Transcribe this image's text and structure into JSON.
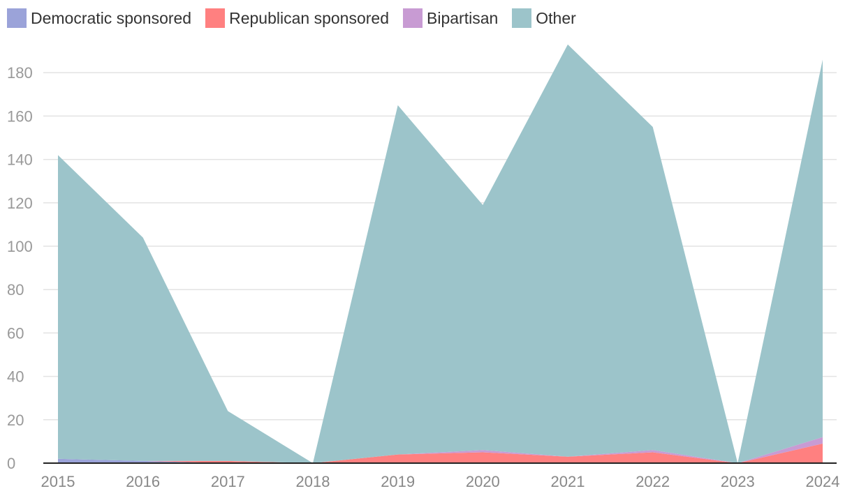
{
  "chart_data": {
    "type": "area",
    "stacked": true,
    "x": [
      "2015",
      "2016",
      "2017",
      "2018",
      "2019",
      "2020",
      "2021",
      "2022",
      "2023",
      "2024"
    ],
    "series": [
      {
        "name": "Democratic sponsored",
        "color": "#9ba3d9",
        "values": [
          2,
          1,
          0,
          0,
          0,
          0,
          0,
          0,
          0,
          0
        ]
      },
      {
        "name": "Republican sponsored",
        "color": "#ff8080",
        "values": [
          0,
          0,
          1,
          0,
          4,
          5,
          3,
          5,
          0,
          9
        ]
      },
      {
        "name": "Bipartisan",
        "color": "#c89bd3",
        "values": [
          0,
          0,
          0,
          0,
          0,
          1,
          0,
          1,
          0,
          3
        ]
      },
      {
        "name": "Other",
        "color": "#9cc4ca",
        "values": [
          140,
          103,
          23,
          0,
          161,
          113,
          190,
          149,
          0,
          174
        ]
      }
    ],
    "yticks": [
      0,
      20,
      40,
      60,
      80,
      100,
      120,
      140,
      160,
      180
    ],
    "ylim": [
      0,
      195
    ],
    "grid": true,
    "legend": "top-left"
  }
}
